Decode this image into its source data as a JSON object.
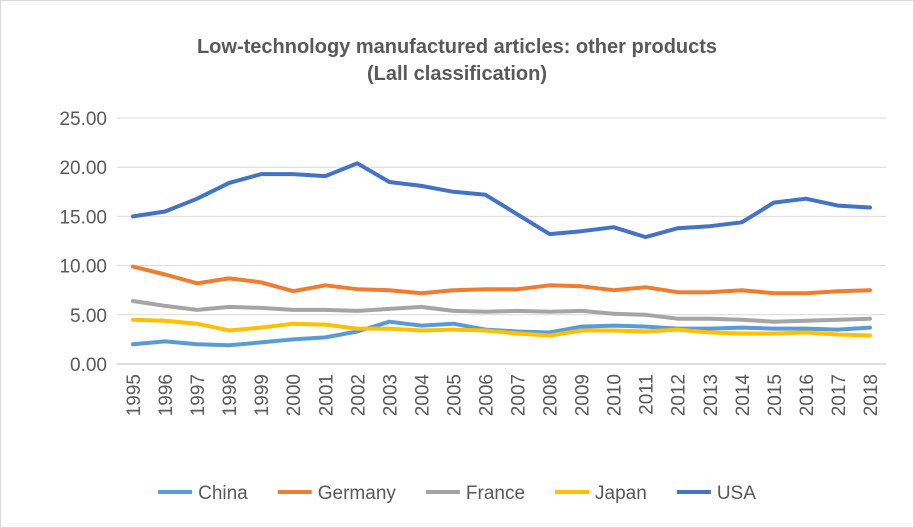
{
  "chart_data": {
    "type": "line",
    "title_lines": [
      "Low-technology manufactured articles: other products",
      "(Lall classification)"
    ],
    "xlabel": "",
    "ylabel": "",
    "ylim": [
      0,
      25
    ],
    "y_ticks": [
      "0.00",
      "5.00",
      "10.00",
      "15.00",
      "20.00",
      "25.00"
    ],
    "y_tick_values": [
      0,
      5,
      10,
      15,
      20,
      25
    ],
    "grid": true,
    "legend_position": "bottom",
    "categories": [
      "1995",
      "1996",
      "1997",
      "1998",
      "1999",
      "2000",
      "2001",
      "2002",
      "2003",
      "2004",
      "2005",
      "2006",
      "2007",
      "2008",
      "2009",
      "2010",
      "2011",
      "2012",
      "2013",
      "2014",
      "2015",
      "2016",
      "2017",
      "2018"
    ],
    "series": [
      {
        "name": "China",
        "color": "#5B9BD5",
        "values": [
          2.0,
          2.3,
          2.0,
          1.9,
          2.2,
          2.5,
          2.7,
          3.3,
          4.3,
          3.9,
          4.1,
          3.5,
          3.3,
          3.2,
          3.8,
          3.9,
          3.8,
          3.6,
          3.6,
          3.7,
          3.6,
          3.6,
          3.5,
          3.7
        ]
      },
      {
        "name": "Germany",
        "color": "#ED7D31",
        "values": [
          9.9,
          9.1,
          8.2,
          8.7,
          8.3,
          7.4,
          8.0,
          7.6,
          7.5,
          7.2,
          7.5,
          7.6,
          7.6,
          8.0,
          7.9,
          7.5,
          7.8,
          7.3,
          7.3,
          7.5,
          7.2,
          7.2,
          7.4,
          7.5
        ]
      },
      {
        "name": "France",
        "color": "#A5A5A5",
        "values": [
          6.4,
          5.9,
          5.5,
          5.8,
          5.7,
          5.5,
          5.5,
          5.4,
          5.6,
          5.8,
          5.4,
          5.3,
          5.4,
          5.3,
          5.4,
          5.1,
          5.0,
          4.6,
          4.6,
          4.5,
          4.3,
          4.4,
          4.5,
          4.6
        ]
      },
      {
        "name": "Japan",
        "color": "#FFC000",
        "values": [
          4.5,
          4.4,
          4.1,
          3.4,
          3.7,
          4.1,
          4.0,
          3.6,
          3.6,
          3.4,
          3.5,
          3.4,
          3.1,
          2.9,
          3.4,
          3.4,
          3.3,
          3.5,
          3.2,
          3.1,
          3.1,
          3.2,
          3.0,
          2.9
        ]
      },
      {
        "name": "USA",
        "color": "#4472C4",
        "values": [
          15.0,
          15.5,
          16.8,
          18.4,
          19.3,
          19.3,
          19.1,
          20.4,
          18.5,
          18.1,
          17.5,
          17.2,
          15.2,
          13.2,
          13.5,
          13.9,
          12.9,
          13.8,
          14.0,
          14.4,
          16.4,
          16.8,
          16.1,
          15.9
        ]
      }
    ],
    "colors": {
      "grid": "#D9D9D9",
      "text": "#595959",
      "axis": "#BFBFBF"
    }
  }
}
